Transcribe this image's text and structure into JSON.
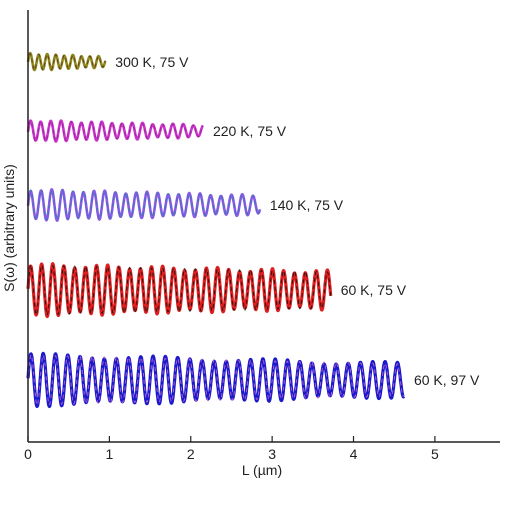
{
  "chart_data": {
    "type": "line",
    "title": "",
    "xlabel": "L (µm)",
    "ylabel": "S(ω) (arbitrary units)",
    "xlim": [
      0,
      5.8
    ],
    "x_ticks": [
      "0",
      "1",
      "2",
      "3",
      "4",
      "5"
    ],
    "y_ticks_shown": false,
    "grid": false,
    "legend": "inline labels at end of each trace",
    "series": [
      {
        "name": "300 K, 75 V",
        "x_range": [
          0.0,
          0.95
        ],
        "period_um": 0.105,
        "amplitude": 0.6,
        "decay": 0.5,
        "color": "#8c8c1c",
        "fit_color": "#6a2a2a"
      },
      {
        "name": "220 K, 75 V",
        "x_range": [
          0.0,
          2.15
        ],
        "period_um": 0.125,
        "amplitude": 0.7,
        "decay": 0.55,
        "color": "#cc33cc",
        "fit_color": "#8a2a8a"
      },
      {
        "name": "140 K, 75 V",
        "x_range": [
          0.0,
          2.85
        ],
        "period_um": 0.13,
        "amplitude": 0.8,
        "decay": 0.5,
        "color": "#8a5ae6",
        "fit_color": "#2b7fa8"
      },
      {
        "name": "60 K, 75 V",
        "x_range": [
          0.0,
          3.72
        ],
        "period_um": 0.135,
        "amplitude": 1.0,
        "decay": 0.35,
        "color": "#dd1f1f",
        "fit_color": "#111111"
      },
      {
        "name": "60 K, 97 V",
        "x_range": [
          0.0,
          4.62
        ],
        "period_um": 0.15,
        "amplitude": 1.0,
        "decay": 0.45,
        "color": "#1a1acc",
        "fit_color": "#cc66cc"
      }
    ]
  }
}
